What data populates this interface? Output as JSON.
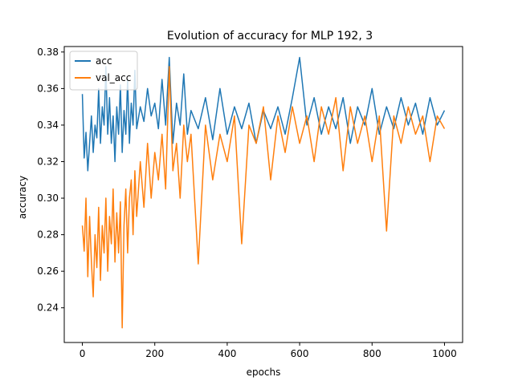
{
  "chart_data": {
    "type": "line",
    "title": "Evolution of accuracy for MLP 192, 3",
    "xlabel": "epochs",
    "ylabel": "accuracy",
    "xlim": [
      -50,
      1050
    ],
    "ylim": [
      0.221,
      0.383
    ],
    "xticks": [
      0,
      200,
      400,
      600,
      800,
      1000
    ],
    "xtick_labels": [
      "0",
      "200",
      "400",
      "600",
      "800",
      "1000"
    ],
    "yticks": [
      0.24,
      0.26,
      0.28,
      0.3,
      0.32,
      0.34,
      0.36,
      0.38
    ],
    "ytick_labels": [
      "0.24",
      "0.26",
      "0.28",
      "0.30",
      "0.32",
      "0.34",
      "0.36",
      "0.38"
    ],
    "grid": false,
    "legend_position": "top-left",
    "series": [
      {
        "name": "acc",
        "color": "#1f77b4",
        "x": [
          0,
          5,
          10,
          15,
          20,
          25,
          30,
          35,
          40,
          45,
          50,
          55,
          60,
          65,
          70,
          75,
          80,
          85,
          90,
          95,
          100,
          105,
          110,
          115,
          120,
          125,
          130,
          135,
          140,
          145,
          150,
          160,
          170,
          180,
          190,
          200,
          210,
          220,
          230,
          240,
          250,
          260,
          270,
          280,
          290,
          300,
          320,
          340,
          360,
          380,
          400,
          420,
          440,
          460,
          480,
          500,
          520,
          540,
          560,
          580,
          600,
          620,
          640,
          660,
          680,
          700,
          720,
          740,
          760,
          780,
          800,
          820,
          840,
          860,
          880,
          900,
          920,
          940,
          960,
          980,
          1000
        ],
        "y": [
          0.357,
          0.322,
          0.336,
          0.315,
          0.33,
          0.345,
          0.325,
          0.34,
          0.333,
          0.36,
          0.33,
          0.35,
          0.34,
          0.372,
          0.335,
          0.355,
          0.33,
          0.345,
          0.32,
          0.35,
          0.335,
          0.362,
          0.325,
          0.348,
          0.335,
          0.365,
          0.33,
          0.352,
          0.34,
          0.37,
          0.338,
          0.35,
          0.342,
          0.36,
          0.345,
          0.352,
          0.338,
          0.365,
          0.34,
          0.377,
          0.33,
          0.352,
          0.34,
          0.368,
          0.335,
          0.348,
          0.338,
          0.355,
          0.332,
          0.36,
          0.335,
          0.35,
          0.338,
          0.352,
          0.33,
          0.348,
          0.338,
          0.35,
          0.335,
          0.355,
          0.377,
          0.34,
          0.355,
          0.335,
          0.35,
          0.338,
          0.355,
          0.33,
          0.35,
          0.34,
          0.36,
          0.335,
          0.35,
          0.338,
          0.355,
          0.34,
          0.352,
          0.335,
          0.355,
          0.34,
          0.348
        ]
      },
      {
        "name": "val_acc",
        "color": "#ff7f0e",
        "x": [
          0,
          5,
          10,
          15,
          20,
          25,
          30,
          35,
          40,
          45,
          50,
          55,
          60,
          65,
          70,
          75,
          80,
          85,
          90,
          95,
          100,
          105,
          110,
          115,
          120,
          125,
          130,
          135,
          140,
          145,
          150,
          160,
          170,
          180,
          190,
          200,
          210,
          220,
          230,
          240,
          250,
          260,
          270,
          280,
          290,
          300,
          320,
          340,
          360,
          380,
          400,
          420,
          440,
          460,
          480,
          500,
          520,
          540,
          560,
          580,
          600,
          620,
          640,
          660,
          680,
          700,
          720,
          740,
          760,
          780,
          800,
          820,
          840,
          860,
          880,
          900,
          920,
          940,
          960,
          980,
          1000
        ],
        "y": [
          0.285,
          0.271,
          0.3,
          0.257,
          0.29,
          0.265,
          0.246,
          0.28,
          0.262,
          0.295,
          0.255,
          0.285,
          0.27,
          0.3,
          0.26,
          0.29,
          0.275,
          0.305,
          0.265,
          0.292,
          0.27,
          0.298,
          0.229,
          0.285,
          0.305,
          0.27,
          0.3,
          0.31,
          0.28,
          0.315,
          0.29,
          0.32,
          0.295,
          0.33,
          0.3,
          0.325,
          0.31,
          0.335,
          0.305,
          0.372,
          0.315,
          0.33,
          0.3,
          0.34,
          0.32,
          0.335,
          0.264,
          0.34,
          0.31,
          0.335,
          0.32,
          0.345,
          0.275,
          0.34,
          0.33,
          0.35,
          0.31,
          0.345,
          0.325,
          0.35,
          0.33,
          0.345,
          0.32,
          0.35,
          0.335,
          0.355,
          0.315,
          0.35,
          0.33,
          0.345,
          0.32,
          0.345,
          0.282,
          0.345,
          0.33,
          0.35,
          0.335,
          0.345,
          0.32,
          0.345,
          0.338
        ]
      }
    ]
  }
}
